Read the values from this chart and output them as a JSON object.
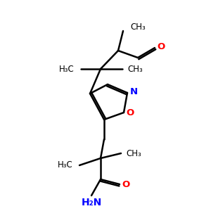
{
  "background_color": "#ffffff",
  "bond_color": "#000000",
  "nitrogen_color": "#0000ff",
  "oxygen_color": "#ff0000",
  "figsize": [
    3.0,
    3.0
  ],
  "dpi": 100,
  "lw": 1.8,
  "font_main": 9.5,
  "font_sub": 8.5
}
